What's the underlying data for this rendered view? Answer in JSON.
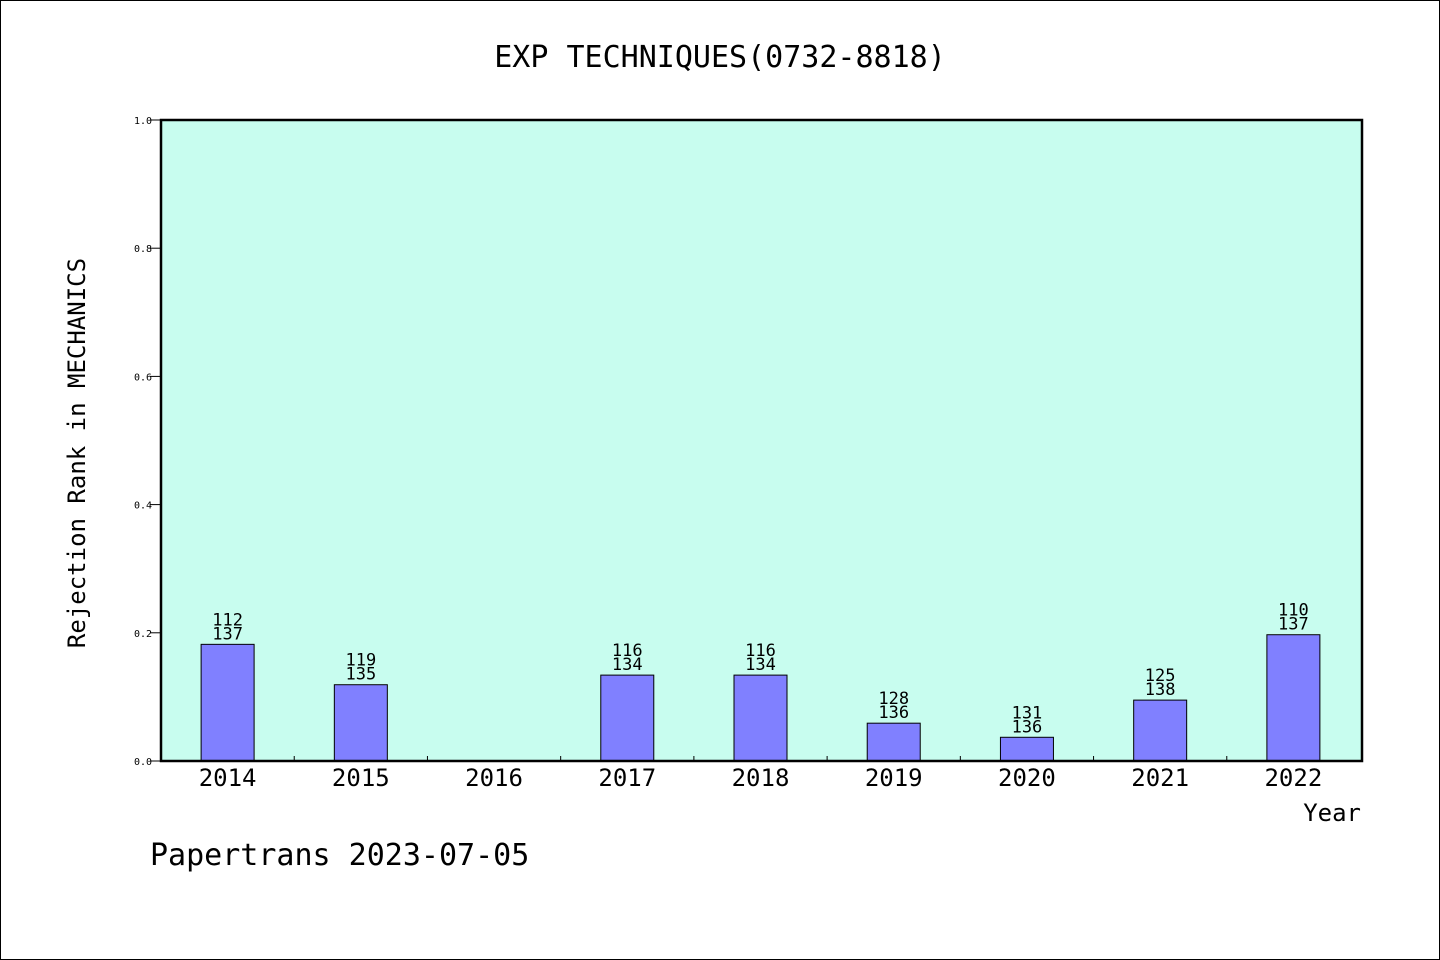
{
  "chart_data": {
    "type": "bar",
    "title": "EXP TECHNIQUES(0732-8818)",
    "xlabel": "Year",
    "ylabel": "Rejection Rank in MECHANICS",
    "ylim": [
      0,
      1.0
    ],
    "yticks": [
      "0.0",
      "0.2",
      "0.4",
      "0.6",
      "0.8",
      "1.0"
    ],
    "categories": [
      "2014",
      "2015",
      "2016",
      "2017",
      "2018",
      "2019",
      "2020",
      "2021",
      "2022"
    ],
    "values": [
      0.182,
      0.119,
      null,
      0.134,
      0.134,
      0.059,
      0.037,
      0.095,
      0.197
    ],
    "label_top": [
      "112",
      "119",
      "",
      "116",
      "116",
      "128",
      "131",
      "125",
      "110"
    ],
    "label_bottom": [
      "137",
      "135",
      "",
      "134",
      "134",
      "136",
      "136",
      "138",
      "137"
    ],
    "grid": false,
    "colors": {
      "plot_background": "#c8fdef",
      "bar_fill": "#8080ff",
      "bar_stroke": "#000000"
    }
  },
  "footer": "Papertrans 2023-07-05"
}
